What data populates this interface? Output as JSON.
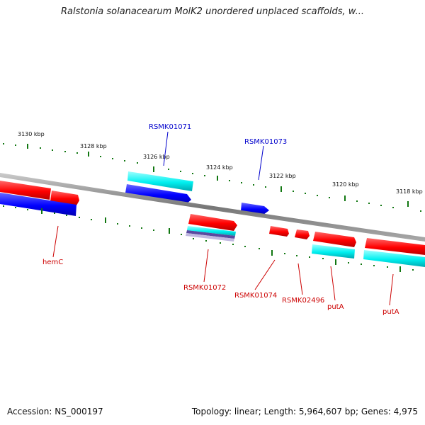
{
  "title": "Ralstonia solanacearum MolK2 unordered unplaced scaffolds, w...",
  "footer": {
    "accession": "Accession: NS_000197",
    "summary": "Topology: linear; Length: 5,964,607 bp; Genes: 4,975"
  },
  "colors": {
    "forward_gene": "#ff0000",
    "forward_gene_cds": "#00ffff",
    "reverse_gene": "#0000ff",
    "reverse_gene_cds": "#00ffff",
    "backbone": "#888888",
    "tick": "#117711",
    "label_forward": "#cc0000",
    "label_reverse": "#0000cc"
  },
  "kbp_labels": [
    {
      "id": "k3130",
      "text": "3130 kbp"
    },
    {
      "id": "k3128",
      "text": "3128 kbp"
    },
    {
      "id": "k3126",
      "text": "3126 kbp"
    },
    {
      "id": "k3124",
      "text": "3124 kbp"
    },
    {
      "id": "k3122",
      "text": "3122 kbp"
    },
    {
      "id": "k3120",
      "text": "3120 kbp"
    },
    {
      "id": "k3118",
      "text": "3118 kbp"
    }
  ],
  "gene_labels": [
    {
      "id": "RSMK01071",
      "text": "RSMK01071",
      "strand": "reverse"
    },
    {
      "id": "RSMK01073",
      "text": "RSMK01073",
      "strand": "reverse"
    },
    {
      "id": "hemC",
      "text": "hemC",
      "strand": "forward"
    },
    {
      "id": "RSMK01072",
      "text": "RSMK01072",
      "strand": "forward"
    },
    {
      "id": "RSMK01074",
      "text": "RSMK01074",
      "strand": "forward"
    },
    {
      "id": "RSMK02496",
      "text": "RSMK02496",
      "strand": "forward"
    },
    {
      "id": "putA1",
      "text": "putA",
      "strand": "forward"
    },
    {
      "id": "putA2",
      "text": "putA",
      "strand": "forward"
    }
  ]
}
